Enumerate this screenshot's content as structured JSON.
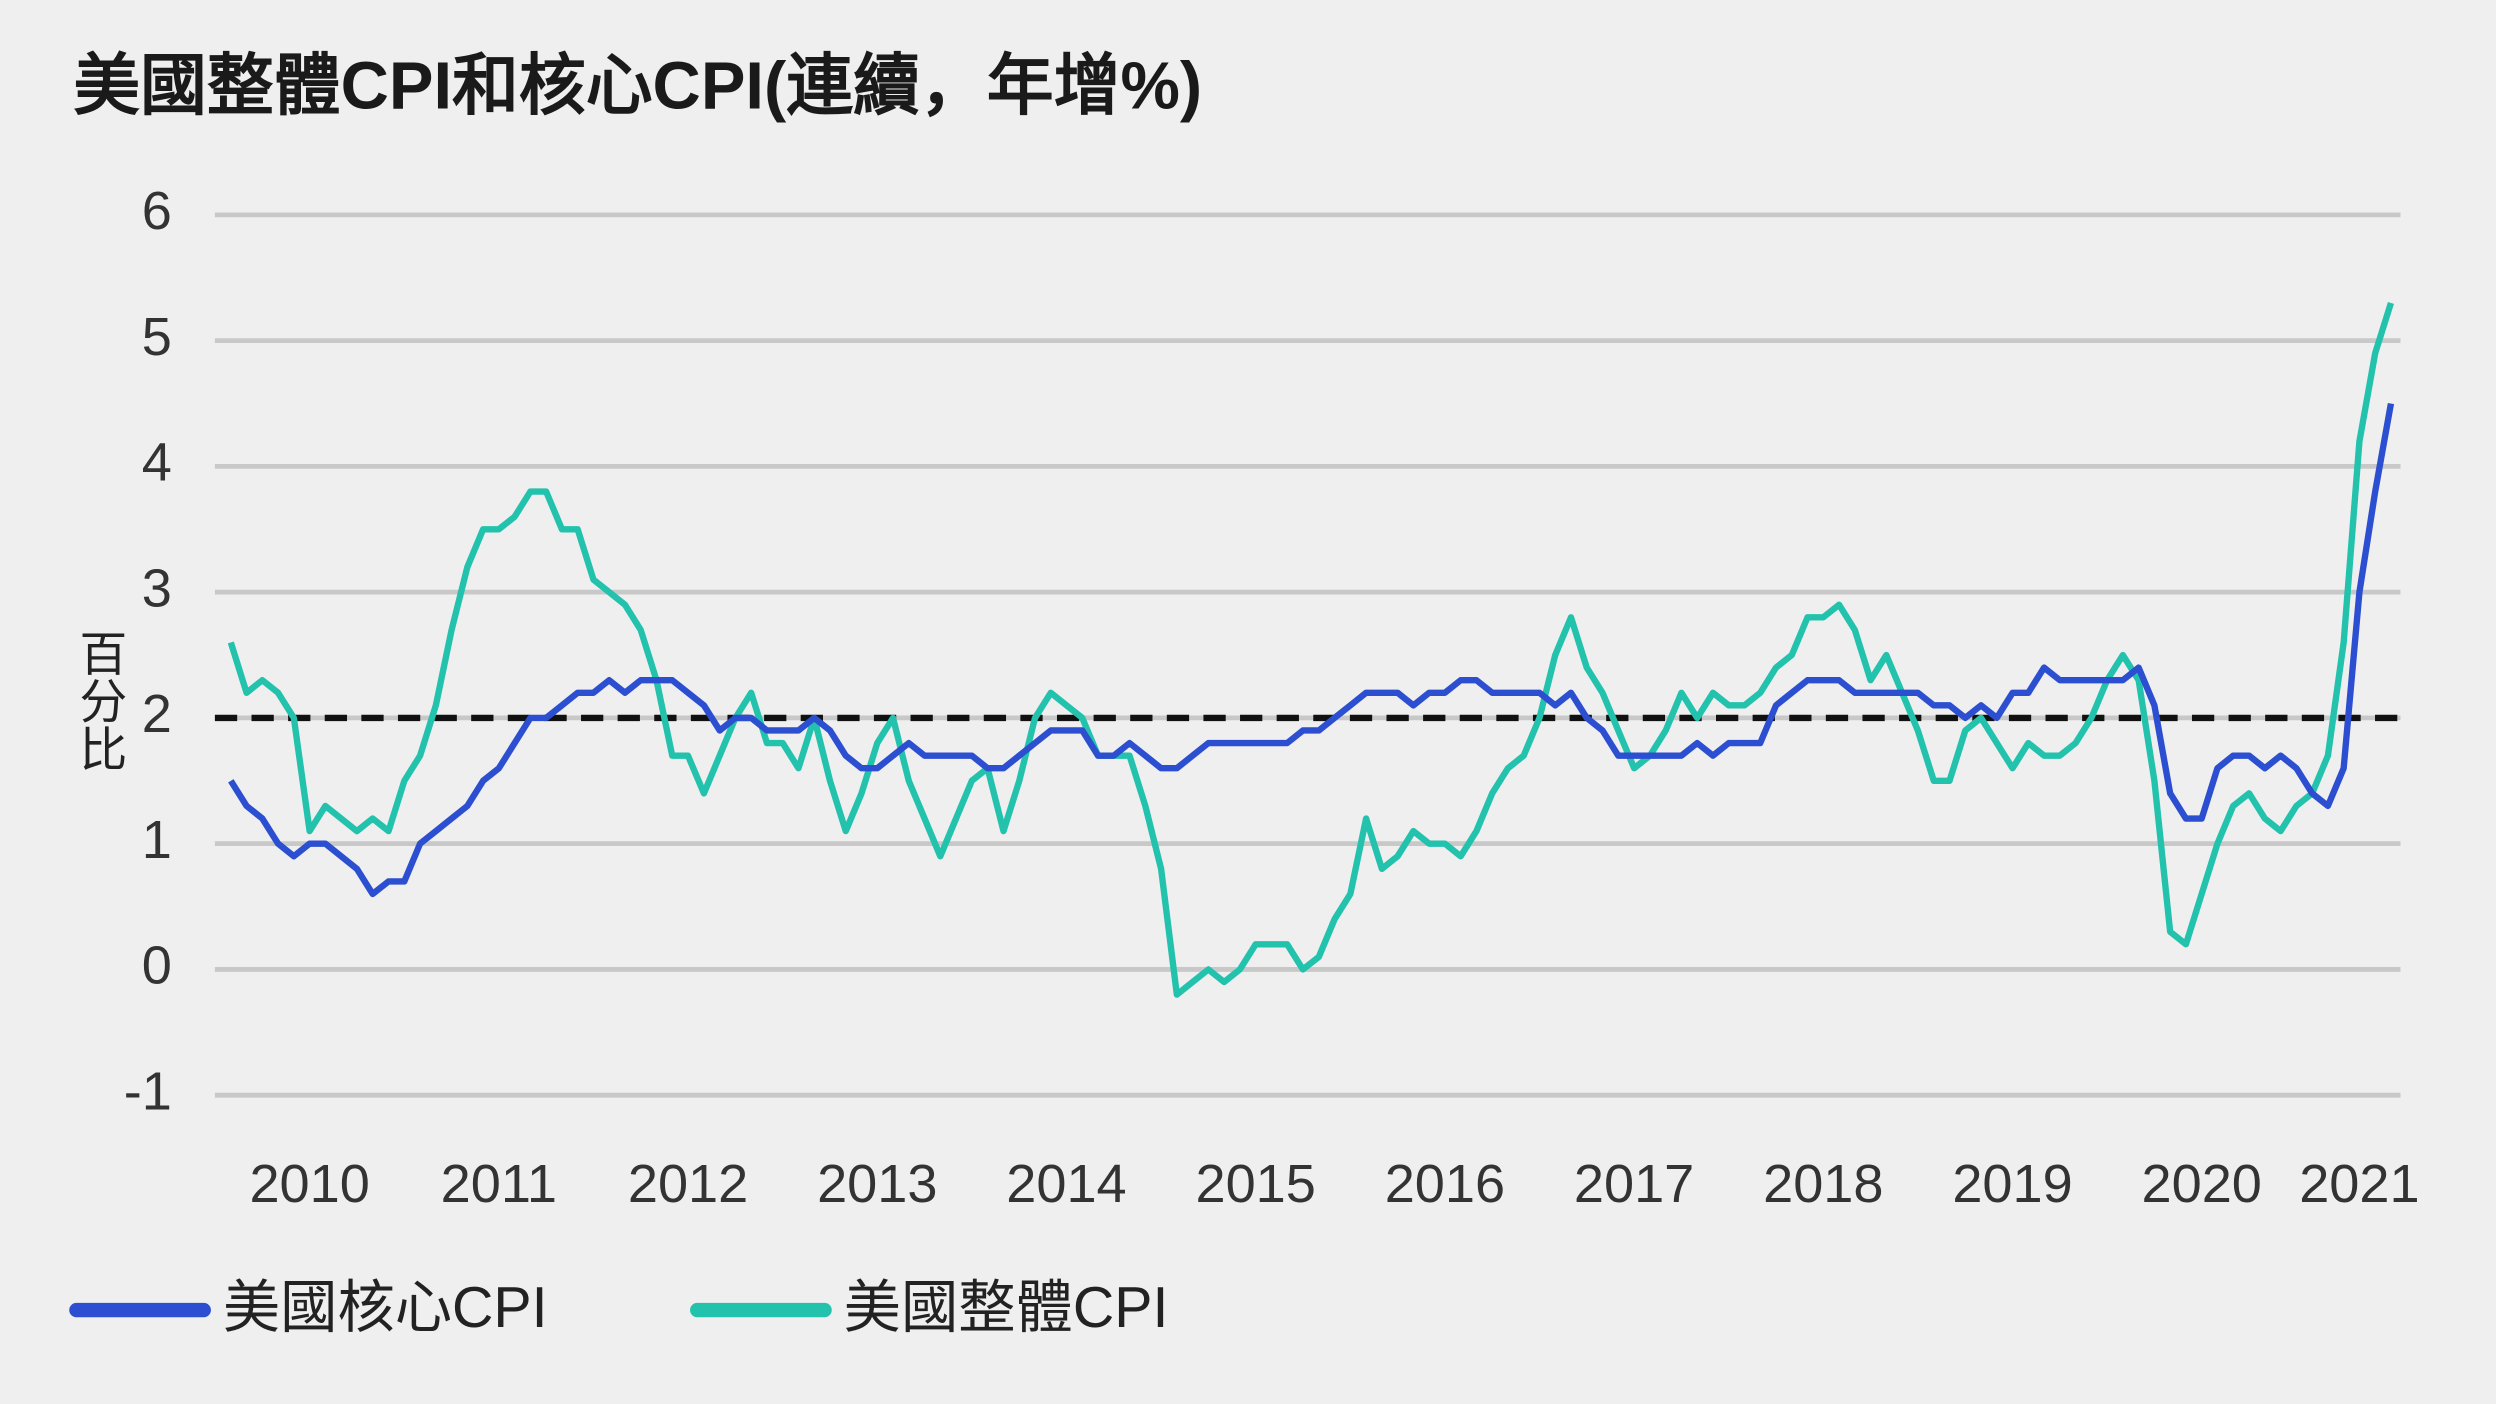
{
  "chart_data": {
    "type": "line",
    "title": "美國整體CPI和核心CPI(連續，年增%)",
    "y_label": "百分比",
    "categories": [
      null,
      null,
      null,
      null,
      null,
      "2010",
      null,
      null,
      null,
      null,
      null,
      null,
      null,
      null,
      null,
      null,
      null,
      "2011",
      null,
      null,
      null,
      null,
      null,
      null,
      null,
      null,
      null,
      null,
      null,
      "2012",
      null,
      null,
      null,
      null,
      null,
      null,
      null,
      null,
      null,
      null,
      null,
      "2013",
      null,
      null,
      null,
      null,
      null,
      null,
      null,
      null,
      null,
      null,
      null,
      "2014",
      null,
      null,
      null,
      null,
      null,
      null,
      null,
      null,
      null,
      null,
      null,
      "2015",
      null,
      null,
      null,
      null,
      null,
      null,
      null,
      null,
      null,
      null,
      null,
      "2016",
      null,
      null,
      null,
      null,
      null,
      null,
      null,
      null,
      null,
      null,
      null,
      "2017",
      null,
      null,
      null,
      null,
      null,
      null,
      null,
      null,
      null,
      null,
      null,
      "2018",
      null,
      null,
      null,
      null,
      null,
      null,
      null,
      null,
      null,
      null,
      null,
      "2019",
      null,
      null,
      null,
      null,
      null,
      null,
      null,
      null,
      null,
      null,
      null,
      "2020",
      null,
      null,
      null,
      null,
      null,
      null,
      null,
      null,
      null,
      "2021",
      null,
      null
    ],
    "series": [
      {
        "name": "美國核心CPI",
        "color": "#2b4fd0",
        "values": [
          1.5,
          1.3,
          1.2,
          1.0,
          0.9,
          1.0,
          1.0,
          0.9,
          0.8,
          0.6,
          0.7,
          0.7,
          1.0,
          1.1,
          1.2,
          1.3,
          1.5,
          1.6,
          1.8,
          2.0,
          2.0,
          2.1,
          2.2,
          2.2,
          2.3,
          2.2,
          2.3,
          2.3,
          2.3,
          2.2,
          2.1,
          1.9,
          2.0,
          2.0,
          1.9,
          1.9,
          1.9,
          2.0,
          1.9,
          1.7,
          1.6,
          1.6,
          1.7,
          1.8,
          1.7,
          1.7,
          1.7,
          1.7,
          1.6,
          1.6,
          1.7,
          1.8,
          1.9,
          1.9,
          1.9,
          1.7,
          1.7,
          1.8,
          1.7,
          1.6,
          1.6,
          1.7,
          1.8,
          1.8,
          1.8,
          1.8,
          1.8,
          1.8,
          1.9,
          1.9,
          2.0,
          2.1,
          2.2,
          2.2,
          2.2,
          2.1,
          2.2,
          2.2,
          2.3,
          2.3,
          2.2,
          2.2,
          2.2,
          2.2,
          2.1,
          2.2,
          2.0,
          1.9,
          1.7,
          1.7,
          1.7,
          1.7,
          1.7,
          1.8,
          1.7,
          1.8,
          1.8,
          1.8,
          2.1,
          2.2,
          2.3,
          2.3,
          2.3,
          2.2,
          2.2,
          2.2,
          2.2,
          2.2,
          2.1,
          2.1,
          2.0,
          2.1,
          2.0,
          2.2,
          2.2,
          2.4,
          2.3,
          2.3,
          2.3,
          2.3,
          2.3,
          2.4,
          2.1,
          1.4,
          1.2,
          1.2,
          1.6,
          1.7,
          1.7,
          1.6,
          1.7,
          1.6,
          1.4,
          1.3,
          1.6,
          3.0,
          3.8,
          4.5
        ]
      },
      {
        "name": "美國整體CPI",
        "color": "#22c2ad",
        "values": [
          2.6,
          2.2,
          2.3,
          2.2,
          2.0,
          1.1,
          1.3,
          1.2,
          1.1,
          1.2,
          1.1,
          1.5,
          1.7,
          2.1,
          2.7,
          3.2,
          3.5,
          3.5,
          3.6,
          3.8,
          3.8,
          3.5,
          3.5,
          3.1,
          3.0,
          2.9,
          2.7,
          2.3,
          1.7,
          1.7,
          1.4,
          1.7,
          2.0,
          2.2,
          1.8,
          1.8,
          1.6,
          2.0,
          1.5,
          1.1,
          1.4,
          1.8,
          2.0,
          1.5,
          1.2,
          0.9,
          1.2,
          1.5,
          1.6,
          1.1,
          1.5,
          2.0,
          2.2,
          2.1,
          2.0,
          1.7,
          1.7,
          1.7,
          1.3,
          0.8,
          -0.2,
          -0.1,
          0.0,
          -0.1,
          0.0,
          0.2,
          0.2,
          0.2,
          0.0,
          0.1,
          0.4,
          0.6,
          1.2,
          0.8,
          0.9,
          1.1,
          1.0,
          1.0,
          0.9,
          1.1,
          1.4,
          1.6,
          1.7,
          2.0,
          2.5,
          2.8,
          2.4,
          2.2,
          1.9,
          1.6,
          1.7,
          1.9,
          2.2,
          2.0,
          2.2,
          2.1,
          2.1,
          2.2,
          2.4,
          2.5,
          2.8,
          2.8,
          2.9,
          2.7,
          2.3,
          2.5,
          2.2,
          1.9,
          1.5,
          1.5,
          1.9,
          2.0,
          1.8,
          1.6,
          1.8,
          1.7,
          1.7,
          1.8,
          2.0,
          2.3,
          2.5,
          2.3,
          1.5,
          0.3,
          0.2,
          0.6,
          1.0,
          1.3,
          1.4,
          1.2,
          1.1,
          1.3,
          1.4,
          1.7,
          2.6,
          4.2,
          4.9,
          5.3
        ]
      }
    ],
    "reference_line": 2,
    "ylim": [
      -1,
      6
    ],
    "yticks": [
      -1,
      0,
      1,
      2,
      3,
      4,
      5,
      6
    ],
    "grid": true
  }
}
